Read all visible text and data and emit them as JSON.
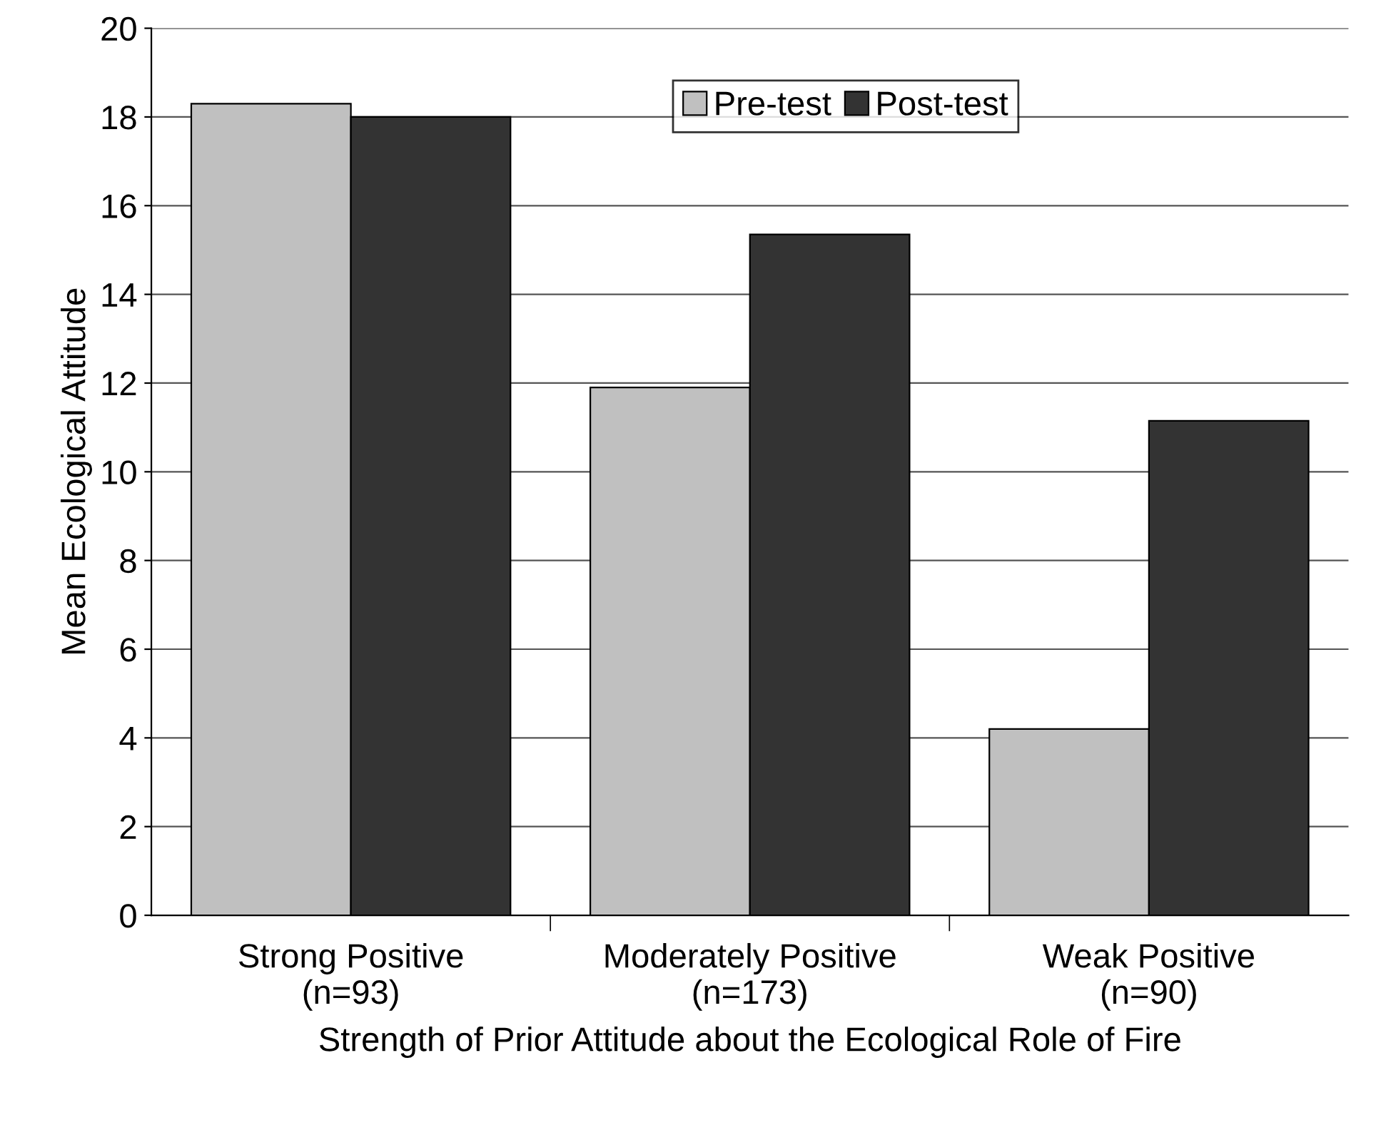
{
  "chart_data": {
    "type": "bar",
    "xlabel": "Strength of Prior Attitude about the Ecological Role of Fire",
    "ylabel": "Mean Ecological Attitude",
    "categories": [
      "Strong Positive\n(n=93)",
      "Moderately Positive\n(n=173)",
      "Weak Positive\n(n=90)"
    ],
    "series": [
      {
        "name": "Pre-test",
        "color": "#c0c0c0",
        "values": [
          18.3,
          11.9,
          4.2
        ]
      },
      {
        "name": "Post-test",
        "color": "#333333",
        "values": [
          18.0,
          15.35,
          11.15
        ]
      }
    ],
    "ylim": [
      0,
      20
    ],
    "yticks": [
      0,
      2,
      4,
      6,
      8,
      10,
      12,
      14,
      16,
      18,
      20
    ],
    "grid": "y",
    "legend": "top"
  }
}
